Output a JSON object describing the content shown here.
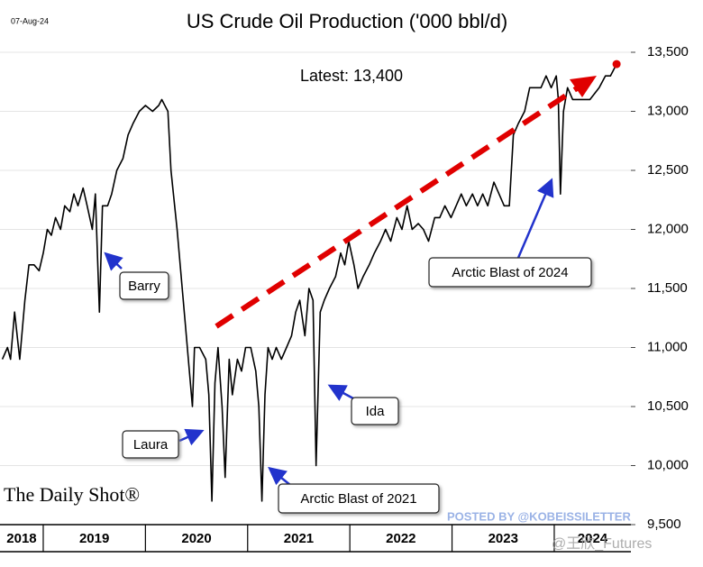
{
  "date_stamp": "07-Aug-24",
  "chart_data": {
    "type": "line",
    "title": "US Crude Oil Production ('000 bbl/d)",
    "annotations": [
      "Latest:  13,400",
      "Barry",
      "Laura",
      "Ida",
      "Arctic Blast of 2021",
      "Arctic Blast of 2024"
    ],
    "x": [
      2018.6,
      2018.65,
      2018.68,
      2018.72,
      2018.77,
      2018.82,
      2018.86,
      2018.91,
      2018.96,
      2019.0,
      2019.04,
      2019.08,
      2019.12,
      2019.17,
      2019.21,
      2019.26,
      2019.3,
      2019.34,
      2019.39,
      2019.43,
      2019.48,
      2019.51,
      2019.55,
      2019.58,
      2019.63,
      2019.67,
      2019.72,
      2019.78,
      2019.83,
      2019.88,
      2019.94,
      2020.0,
      2020.07,
      2020.13,
      2020.16,
      2020.19,
      2020.22,
      2020.25,
      2020.31,
      2020.34,
      2020.39,
      2020.43,
      2020.46,
      2020.48,
      2020.53,
      2020.59,
      2020.62,
      2020.65,
      2020.68,
      2020.71,
      2020.75,
      2020.78,
      2020.82,
      2020.85,
      2020.9,
      2020.94,
      2020.98,
      2021.03,
      2021.08,
      2021.11,
      2021.14,
      2021.17,
      2021.2,
      2021.24,
      2021.28,
      2021.33,
      2021.38,
      2021.43,
      2021.47,
      2021.51,
      2021.56,
      2021.6,
      2021.64,
      2021.67,
      2021.71,
      2021.75,
      2021.8,
      2021.86,
      2021.91,
      2021.95,
      2021.99,
      2022.04,
      2022.08,
      2022.13,
      2022.19,
      2022.24,
      2022.3,
      2022.35,
      2022.4,
      2022.46,
      2022.51,
      2022.56,
      2022.61,
      2022.67,
      2022.72,
      2022.77,
      2022.83,
      2022.88,
      2022.93,
      2022.99,
      2023.04,
      2023.09,
      2023.14,
      2023.2,
      2023.25,
      2023.3,
      2023.35,
      2023.41,
      2023.46,
      2023.51,
      2023.56,
      2023.6,
      2023.65,
      2023.71,
      2023.76,
      2023.81,
      2023.87,
      2023.92,
      2023.97,
      2024.02,
      2024.04,
      2024.06,
      2024.09,
      2024.13,
      2024.18,
      2024.26,
      2024.35,
      2024.44,
      2024.5,
      2024.55,
      2024.61
    ],
    "series": [
      {
        "name": "US crude oil production",
        "color": "#000000",
        "values": [
          10900,
          11000,
          10900,
          11300,
          10900,
          11400,
          11700,
          11700,
          11650,
          11800,
          12000,
          11950,
          12100,
          12000,
          12200,
          12150,
          12300,
          12200,
          12350,
          12200,
          12000,
          12300,
          11300,
          12200,
          12200,
          12300,
          12500,
          12600,
          12800,
          12900,
          13000,
          13050,
          13000,
          13050,
          13100,
          13050,
          13000,
          12500,
          12000,
          11700,
          11200,
          10800,
          10500,
          11000,
          11000,
          10900,
          10600,
          9700,
          10700,
          11000,
          10500,
          9900,
          10900,
          10600,
          10900,
          10800,
          11000,
          11000,
          10800,
          10500,
          9700,
          10600,
          11000,
          10900,
          11000,
          10900,
          11000,
          11100,
          11300,
          11400,
          11100,
          11500,
          11400,
          10000,
          11300,
          11400,
          11500,
          11600,
          11800,
          11700,
          11900,
          11700,
          11500,
          11600,
          11700,
          11800,
          11900,
          12000,
          11900,
          12100,
          12000,
          12200,
          12000,
          12050,
          12000,
          11900,
          12100,
          12100,
          12200,
          12100,
          12200,
          12300,
          12200,
          12300,
          12200,
          12300,
          12200,
          12400,
          12300,
          12200,
          12200,
          12800,
          12900,
          13000,
          13200,
          13200,
          13200,
          13300,
          13200,
          13300,
          13100,
          12300,
          13000,
          13200,
          13100,
          13100,
          13100,
          13200,
          13300,
          13300,
          13400
        ]
      }
    ],
    "latest_color": "#e00000",
    "trend_color": "#e00000",
    "xlim": [
      2018.577,
      2024.75
    ],
    "xticks": [
      2019,
      2020,
      2021,
      2022,
      2023,
      2024
    ],
    "year_labels": [
      "2018",
      "2019",
      "2020",
      "2021",
      "2022",
      "2023",
      "2024"
    ],
    "ylim": [
      9500,
      13500
    ],
    "yticks": [
      {
        "value": 9500,
        "label": "9,500"
      },
      {
        "value": 10000,
        "label": "10,000"
      },
      {
        "value": 10500,
        "label": "10,500"
      },
      {
        "value": 11000,
        "label": "11,000"
      },
      {
        "value": 11500,
        "label": "11,500"
      },
      {
        "value": 12000,
        "label": "12,000"
      },
      {
        "value": 12500,
        "label": "12,500"
      },
      {
        "value": 13000,
        "label": "13,000"
      },
      {
        "value": 13500,
        "label": "13,500"
      }
    ],
    "grid": true
  },
  "source": "The Daily Shot®",
  "watermarks": [
    "POSTED BY @KOBEISSILETTER",
    "@王欣_Futures"
  ]
}
